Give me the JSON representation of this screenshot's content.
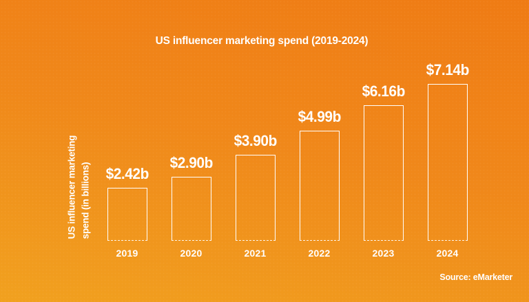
{
  "page": {
    "background_top": "#EF7B14",
    "background_bottom": "#F1A11F",
    "text_color": "#FFFFFF",
    "bar_outline_color": "#FFFFFF"
  },
  "chart_data": {
    "type": "bar",
    "title": "US influencer marketing spend (2019-2024)",
    "ylabel": "US influencer marketing spend (in billions)",
    "ylabel_lines": [
      "US influencer marketing",
      "spend (in billions)"
    ],
    "categories": [
      "2019",
      "2020",
      "2021",
      "2022",
      "2023",
      "2024"
    ],
    "values": [
      2.42,
      2.9,
      3.9,
      4.99,
      6.16,
      7.14
    ],
    "value_labels": [
      "$2.42b",
      "$2.90b",
      "$3.90b",
      "$4.99b",
      "$6.16b",
      "$7.14b"
    ],
    "ylim": [
      0,
      7.5
    ],
    "grid": false,
    "legend": false,
    "bar_style": "white-outline-transparent-fill-dashed-baseline",
    "source": "Source: eMarketer"
  }
}
